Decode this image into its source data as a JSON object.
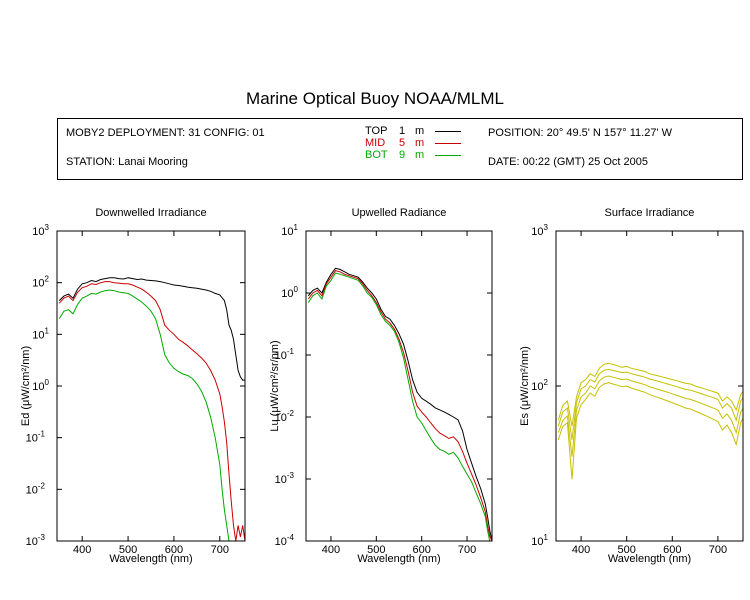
{
  "title": "Marine Optical Buoy NOAA/MLML",
  "info": {
    "deployment": "MOBY2 DEPLOYMENT: 31 CONFIG: 01",
    "station": "STATION: Lanai Mooring",
    "position": "POSITION: 20° 49.5' N   157° 11.27' W",
    "date": "DATE: 00:22 (GMT) 25 Oct 2005"
  },
  "legend": [
    {
      "name": "TOP",
      "depth": "1",
      "unit": "m",
      "color": "#000000"
    },
    {
      "name": "MID",
      "depth": "5",
      "unit": "m",
      "color": "#cc0000"
    },
    {
      "name": "BOT",
      "depth": "9",
      "unit": "m",
      "color": "#00aa00"
    }
  ],
  "chart_data": [
    {
      "type": "line",
      "title": "Downwelled Irradiance",
      "xlabel": "Wavelength (nm)",
      "ylabel": "Ed  (μW/cm²/nm)",
      "xlim": [
        345,
        755
      ],
      "ylim": [
        0.001,
        1000
      ],
      "yscale": "log",
      "xticks": [
        400,
        500,
        600,
        700
      ],
      "yticks": [
        {
          "value": 0.001,
          "base": "10",
          "exp": "-3"
        },
        {
          "value": 0.01,
          "base": "10",
          "exp": "-2"
        },
        {
          "value": 0.1,
          "base": "10",
          "exp": "-1"
        },
        {
          "value": 1,
          "base": "10",
          "exp": "0"
        },
        {
          "value": 10,
          "base": "10",
          "exp": "1"
        },
        {
          "value": 100,
          "base": "10",
          "exp": "2"
        },
        {
          "value": 1000,
          "base": "10",
          "exp": "3"
        }
      ],
      "series": [
        {
          "name": "TOP",
          "color": "#000000",
          "x": [
            350,
            360,
            370,
            380,
            390,
            400,
            410,
            420,
            430,
            440,
            450,
            460,
            470,
            480,
            490,
            500,
            510,
            520,
            530,
            540,
            550,
            560,
            570,
            580,
            590,
            600,
            610,
            620,
            630,
            640,
            650,
            660,
            670,
            680,
            690,
            700,
            710,
            715,
            720,
            725,
            730,
            735,
            740,
            745,
            750,
            755
          ],
          "y": [
            45,
            55,
            60,
            50,
            75,
            95,
            100,
            110,
            105,
            115,
            120,
            125,
            125,
            120,
            118,
            125,
            120,
            115,
            118,
            112,
            110,
            108,
            105,
            100,
            95,
            90,
            88,
            85,
            82,
            80,
            78,
            75,
            72,
            68,
            62,
            58,
            45,
            30,
            15,
            12,
            8,
            4,
            2,
            1.5,
            1.3,
            1.3
          ]
        },
        {
          "name": "MID",
          "color": "#cc0000",
          "x": [
            350,
            360,
            370,
            380,
            390,
            400,
            410,
            420,
            430,
            440,
            450,
            460,
            470,
            480,
            490,
            500,
            510,
            520,
            530,
            540,
            550,
            560,
            570,
            580,
            590,
            600,
            610,
            620,
            630,
            640,
            650,
            660,
            670,
            680,
            690,
            700,
            705,
            710,
            715,
            720,
            725,
            730,
            735,
            740,
            745,
            750,
            755
          ],
          "y": [
            40,
            50,
            55,
            45,
            65,
            80,
            85,
            95,
            92,
            100,
            105,
            105,
            100,
            98,
            95,
            95,
            90,
            82,
            75,
            65,
            55,
            45,
            30,
            15,
            12,
            10,
            8,
            7,
            6,
            5,
            4.2,
            3.5,
            2.8,
            2,
            1.3,
            0.7,
            0.4,
            0.2,
            0.08,
            0.02,
            0.006,
            0.002,
            0.001,
            0.002,
            0.0012,
            0.002,
            0.001
          ]
        },
        {
          "name": "BOT",
          "color": "#00aa00",
          "x": [
            350,
            360,
            370,
            380,
            390,
            400,
            410,
            420,
            430,
            440,
            450,
            460,
            470,
            480,
            490,
            500,
            510,
            520,
            530,
            540,
            550,
            560,
            570,
            580,
            590,
            600,
            610,
            620,
            630,
            640,
            650,
            660,
            670,
            680,
            690,
            700,
            705,
            710,
            715,
            720,
            725
          ],
          "y": [
            20,
            28,
            30,
            25,
            38,
            50,
            55,
            62,
            60,
            66,
            70,
            72,
            70,
            66,
            64,
            62,
            55,
            48,
            42,
            35,
            28,
            20,
            10,
            4,
            2.8,
            2.2,
            1.9,
            1.7,
            1.6,
            1.4,
            1.1,
            0.8,
            0.5,
            0.25,
            0.1,
            0.03,
            0.01,
            0.004,
            0.002,
            0.001,
            0.001
          ]
        }
      ]
    },
    {
      "type": "line",
      "title": "Upwelled Radiance",
      "xlabel": "Wavelength (nm)",
      "ylabel": "Lu  (μW/cm²/sr/nm)",
      "xlim": [
        345,
        755
      ],
      "ylim": [
        0.0001,
        10
      ],
      "yscale": "log",
      "xticks": [
        400,
        500,
        600,
        700
      ],
      "yticks": [
        {
          "value": 0.0001,
          "base": "10",
          "exp": "-4"
        },
        {
          "value": 0.001,
          "base": "10",
          "exp": "-3"
        },
        {
          "value": 0.01,
          "base": "10",
          "exp": "-2"
        },
        {
          "value": 0.1,
          "base": "10",
          "exp": "-1"
        },
        {
          "value": 1,
          "base": "10",
          "exp": "0"
        },
        {
          "value": 10,
          "base": "10",
          "exp": "1"
        }
      ],
      "series": [
        {
          "name": "TOP",
          "color": "#000000",
          "x": [
            350,
            360,
            370,
            380,
            390,
            400,
            410,
            420,
            430,
            440,
            450,
            460,
            470,
            480,
            490,
            500,
            510,
            520,
            530,
            540,
            550,
            560,
            570,
            580,
            590,
            600,
            610,
            620,
            630,
            640,
            650,
            660,
            670,
            680,
            690,
            700,
            710,
            720,
            730,
            740,
            745,
            750,
            755
          ],
          "y": [
            0.9,
            1.1,
            1.2,
            1.0,
            1.5,
            2.0,
            2.5,
            2.4,
            2.2,
            2.0,
            1.9,
            1.8,
            1.5,
            1.2,
            1.0,
            0.8,
            0.55,
            0.42,
            0.38,
            0.3,
            0.22,
            0.15,
            0.08,
            0.04,
            0.025,
            0.02,
            0.018,
            0.016,
            0.014,
            0.013,
            0.012,
            0.011,
            0.01,
            0.009,
            0.006,
            0.003,
            0.0018,
            0.0011,
            0.0007,
            0.0004,
            0.00025,
            0.00015,
            0.0001
          ]
        },
        {
          "name": "MID",
          "color": "#cc0000",
          "x": [
            350,
            360,
            370,
            380,
            390,
            400,
            410,
            420,
            430,
            440,
            450,
            460,
            470,
            480,
            490,
            500,
            510,
            520,
            530,
            540,
            550,
            560,
            570,
            580,
            590,
            600,
            610,
            620,
            630,
            640,
            650,
            660,
            670,
            680,
            690,
            700,
            710,
            720,
            730,
            740,
            745,
            750,
            755
          ],
          "y": [
            0.8,
            1.0,
            1.1,
            0.9,
            1.4,
            1.8,
            2.3,
            2.2,
            2.0,
            1.9,
            1.8,
            1.7,
            1.4,
            1.1,
            0.9,
            0.7,
            0.5,
            0.38,
            0.33,
            0.26,
            0.18,
            0.11,
            0.055,
            0.025,
            0.015,
            0.012,
            0.01,
            0.008,
            0.0065,
            0.0055,
            0.005,
            0.0045,
            0.0048,
            0.004,
            0.0028,
            0.0018,
            0.0012,
            0.0008,
            0.0005,
            0.0003,
            0.00018,
            0.00012,
            0.0001
          ]
        },
        {
          "name": "BOT",
          "color": "#00aa00",
          "x": [
            350,
            360,
            370,
            380,
            390,
            400,
            410,
            420,
            430,
            440,
            450,
            460,
            470,
            480,
            490,
            500,
            510,
            520,
            530,
            540,
            550,
            560,
            570,
            580,
            590,
            600,
            610,
            620,
            630,
            640,
            650,
            660,
            670,
            680,
            690,
            700,
            710,
            720,
            730,
            740,
            745,
            750,
            755
          ],
          "y": [
            0.7,
            0.9,
            1.0,
            0.8,
            1.3,
            1.6,
            2.1,
            2.0,
            1.9,
            1.8,
            1.7,
            1.6,
            1.3,
            1.0,
            0.85,
            0.65,
            0.45,
            0.35,
            0.3,
            0.24,
            0.16,
            0.09,
            0.04,
            0.018,
            0.01,
            0.008,
            0.006,
            0.0045,
            0.0035,
            0.003,
            0.0028,
            0.0025,
            0.0027,
            0.0022,
            0.0016,
            0.0012,
            0.0009,
            0.0006,
            0.0004,
            0.00025,
            0.00015,
            0.0001,
            0.0001
          ]
        }
      ]
    },
    {
      "type": "line",
      "title": "Surface Irradiance",
      "xlabel": "Wavelength (nm)",
      "ylabel": "Es  (μW/cm²/nm)",
      "xlim": [
        345,
        755
      ],
      "ylim": [
        10,
        1000
      ],
      "yscale": "log",
      "xticks": [
        400,
        500,
        600,
        700
      ],
      "yticks": [
        {
          "value": 10,
          "base": "10",
          "exp": "1"
        },
        {
          "value": 100,
          "base": "10",
          "exp": "2"
        },
        {
          "value": 1000,
          "base": "10",
          "exp": "3"
        }
      ],
      "series": [
        {
          "name": "",
          "color": "#c8c000",
          "x": [
            350,
            360,
            370,
            380,
            390,
            400,
            410,
            420,
            430,
            440,
            450,
            460,
            470,
            480,
            490,
            500,
            510,
            520,
            530,
            540,
            550,
            560,
            570,
            580,
            590,
            600,
            610,
            620,
            630,
            640,
            650,
            660,
            670,
            680,
            690,
            700,
            710,
            720,
            730,
            740,
            750,
            755
          ],
          "y": [
            60,
            75,
            80,
            55,
            85,
            105,
            110,
            120,
            115,
            130,
            138,
            140,
            138,
            135,
            132,
            134,
            130,
            128,
            126,
            124,
            120,
            118,
            116,
            114,
            112,
            110,
            108,
            106,
            104,
            103,
            100,
            98,
            96,
            94,
            92,
            90,
            80,
            85,
            80,
            70,
            88,
            92
          ]
        },
        {
          "name": "",
          "color": "#c8c000",
          "x": [
            350,
            360,
            370,
            380,
            390,
            400,
            410,
            420,
            430,
            440,
            450,
            460,
            470,
            480,
            490,
            500,
            510,
            520,
            530,
            540,
            550,
            560,
            570,
            580,
            590,
            600,
            610,
            620,
            630,
            640,
            650,
            660,
            670,
            680,
            690,
            700,
            710,
            720,
            730,
            740,
            750,
            755
          ],
          "y": [
            55,
            68,
            72,
            45,
            78,
            96,
            100,
            110,
            106,
            120,
            126,
            128,
            126,
            124,
            122,
            123,
            120,
            118,
            116,
            114,
            111,
            109,
            107,
            105,
            103,
            101,
            99,
            97,
            95,
            94,
            92,
            90,
            88,
            86,
            84,
            82,
            72,
            77,
            72,
            60,
            80,
            84
          ]
        },
        {
          "name": "",
          "color": "#c8c000",
          "x": [
            350,
            360,
            370,
            380,
            390,
            400,
            410,
            420,
            430,
            440,
            450,
            460,
            470,
            480,
            490,
            500,
            510,
            520,
            530,
            540,
            550,
            560,
            570,
            580,
            590,
            600,
            610,
            620,
            630,
            640,
            650,
            660,
            670,
            680,
            690,
            700,
            710,
            720,
            730,
            740,
            750,
            755
          ],
          "y": [
            50,
            60,
            64,
            35,
            70,
            85,
            90,
            100,
            96,
            108,
            114,
            116,
            114,
            112,
            110,
            111,
            108,
            106,
            104,
            102,
            99,
            97,
            95,
            93,
            91,
            89,
            87,
            85,
            83,
            82,
            80,
            78,
            76,
            74,
            72,
            70,
            62,
            66,
            60,
            50,
            68,
            72
          ]
        },
        {
          "name": "",
          "color": "#c8c000",
          "x": [
            350,
            360,
            370,
            380,
            390,
            400,
            410,
            420,
            430,
            440,
            450,
            460,
            470,
            480,
            490,
            500,
            510,
            520,
            530,
            540,
            550,
            560,
            570,
            580,
            590,
            600,
            610,
            620,
            630,
            640,
            650,
            660,
            670,
            680,
            690,
            700,
            710,
            720,
            730,
            740,
            750,
            755
          ],
          "y": [
            45,
            55,
            58,
            25,
            62,
            76,
            82,
            90,
            86,
            98,
            103,
            105,
            103,
            101,
            99,
            100,
            97,
            95,
            93,
            91,
            88,
            86,
            84,
            82,
            80,
            78,
            76,
            74,
            72,
            71,
            69,
            67,
            65,
            63,
            61,
            59,
            52,
            56,
            50,
            42,
            58,
            62
          ]
        }
      ]
    }
  ]
}
